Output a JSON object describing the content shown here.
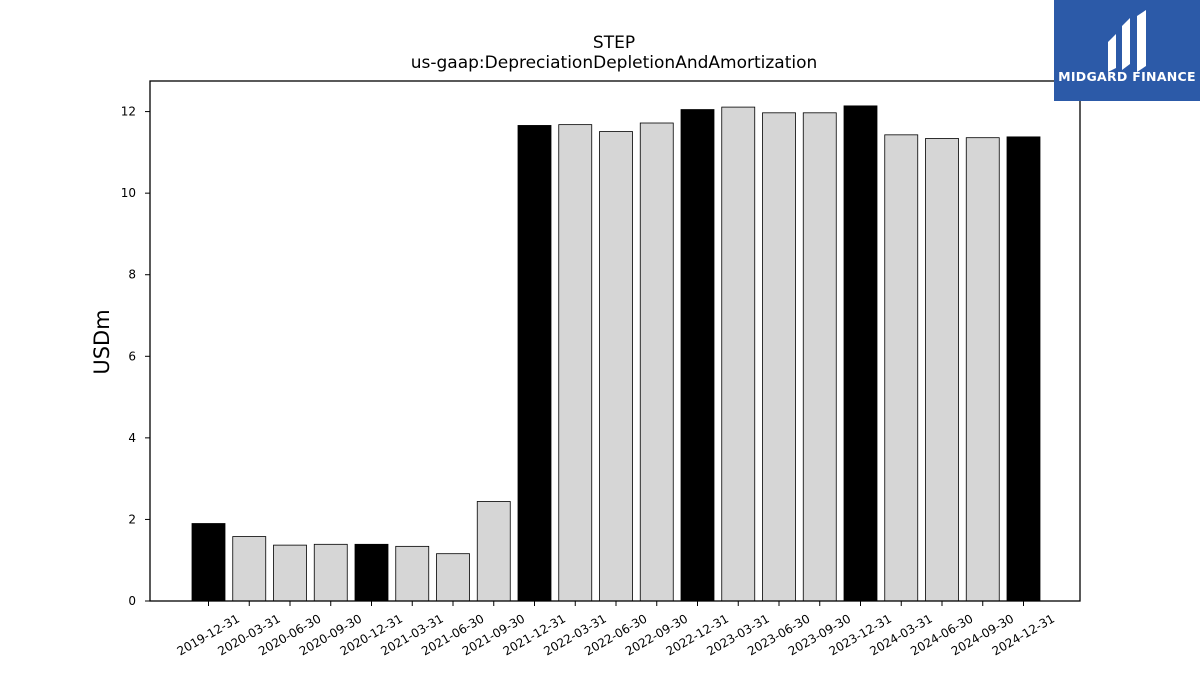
{
  "logo": {
    "text": "MIDGARD FINANCE",
    "background": "#2c5aa8"
  },
  "chart_data": {
    "type": "bar",
    "title": "STEP",
    "subtitle": "us-gaap:DepreciationDepletionAndAmortization",
    "xlabel": "",
    "ylabel": "USDm",
    "ylim": [
      0,
      12.75
    ],
    "yticks": [
      0,
      2,
      4,
      6,
      8,
      10,
      12
    ],
    "grid": false,
    "categories": [
      "2019-12-31",
      "2020-03-31",
      "2020-06-30",
      "2020-09-30",
      "2020-12-31",
      "2021-03-31",
      "2021-06-30",
      "2021-09-30",
      "2021-12-31",
      "2022-03-31",
      "2022-06-30",
      "2022-09-30",
      "2022-12-31",
      "2023-03-31",
      "2023-06-30",
      "2023-09-30",
      "2023-12-31",
      "2024-03-31",
      "2024-06-30",
      "2024-09-30",
      "2024-12-31"
    ],
    "values": [
      1.9,
      1.58,
      1.37,
      1.39,
      1.39,
      1.34,
      1.16,
      2.44,
      11.66,
      11.68,
      11.51,
      11.72,
      12.05,
      12.11,
      11.97,
      11.97,
      12.14,
      11.43,
      11.34,
      11.36,
      11.38
    ],
    "colors": {
      "year_end": "#000000",
      "quarter": "#d6d6d6",
      "edge": "#000000"
    }
  }
}
